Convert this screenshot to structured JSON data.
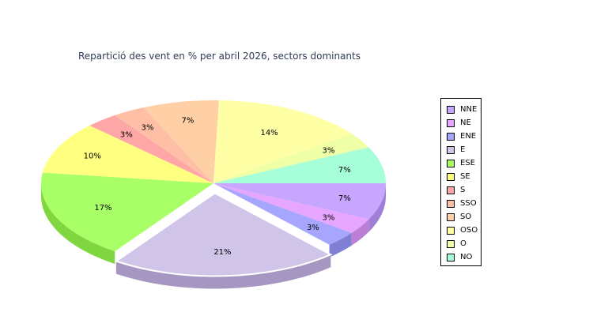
{
  "chart_data": {
    "type": "pie",
    "title": "Repartició des vent en % per abril 2026, sectors dominants",
    "series": [
      {
        "label": "NNE",
        "value": 7,
        "display": "7%",
        "color": "#c8a6ff",
        "side": "#9f7fd6",
        "explode": false
      },
      {
        "label": "NE",
        "value": 3,
        "display": "3%",
        "color": "#e6a6ff",
        "side": "#bd7fd6",
        "explode": false
      },
      {
        "label": "ENE",
        "value": 3,
        "display": "3%",
        "color": "#a6a6ff",
        "side": "#7f7fd6",
        "explode": false
      },
      {
        "label": "E",
        "value": 21,
        "display": "21%",
        "color": "#d0c4e8",
        "side": "#a697c2",
        "explode": true
      },
      {
        "label": "ESE",
        "value": 17,
        "display": "17%",
        "color": "#a8ff66",
        "side": "#7fd63f",
        "explode": false
      },
      {
        "label": "SE",
        "value": 10,
        "display": "10%",
        "color": "#ffff80",
        "side": "#d6d659",
        "explode": false
      },
      {
        "label": "S",
        "value": 3,
        "display": "3%",
        "color": "#ffa6a6",
        "side": "#d67f7f",
        "explode": false
      },
      {
        "label": "SSO",
        "value": 3,
        "display": "3%",
        "color": "#ffbfa6",
        "side": "#d6977f",
        "explode": false
      },
      {
        "label": "SO",
        "value": 7,
        "display": "7%",
        "color": "#ffd0a6",
        "side": "#d6a77f",
        "explode": false
      },
      {
        "label": "OSO",
        "value": 14,
        "display": "14%",
        "color": "#ffffa6",
        "side": "#d6d67f",
        "explode": false
      },
      {
        "label": "O",
        "value": 3,
        "display": "3%",
        "color": "#eeffa6",
        "side": "#c6d67f",
        "explode": false
      },
      {
        "label": "NO",
        "value": 7,
        "display": "7%",
        "color": "#a6ffd9",
        "side": "#7fd6b2",
        "explode": false
      }
    ],
    "legend_position": "right"
  }
}
